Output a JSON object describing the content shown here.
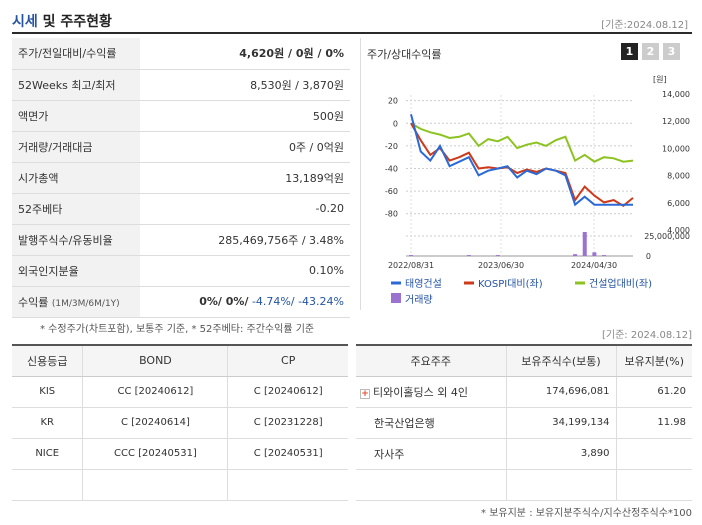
{
  "header": {
    "title_prefix": "시세",
    "title_rest": " 및 주주현황",
    "date": "[기준:2024.08.12]"
  },
  "quote": [
    {
      "label": "주가/전일대비/수익률",
      "value": "4,620원 / 0원 / 0%"
    },
    {
      "label": "52Weeks 최고/최저",
      "value": "8,530원 / 3,870원"
    },
    {
      "label": "액면가",
      "value": "500원"
    },
    {
      "label": "거래량/거래대금",
      "value": "0주 / 0억원"
    },
    {
      "label": "시가총액",
      "value": "13,189억원"
    },
    {
      "label": "52주베타",
      "value": "-0.20"
    },
    {
      "label": "발행주식수/유동비율",
      "value": "285,469,756주 / 3.48%"
    },
    {
      "label": "외국인지분율",
      "value": "0.10%"
    }
  ],
  "returns": {
    "label": "수익률",
    "sub": "(1M/3M/6M/1Y)",
    "v1": "0%/ 0%/",
    "v2": " -4.74%/ -43.24%"
  },
  "chart": {
    "title": "주가/상대수익률",
    "tabs": [
      "1",
      "2",
      "3"
    ],
    "unit_right": "[원]"
  },
  "chart_data": {
    "type": "line",
    "x_ticks": [
      "2022/08/31",
      "2023/06/30",
      "2024/04/30"
    ],
    "left_axis": {
      "ticks": [
        "20",
        "0",
        "-20",
        "-40",
        "-60",
        "-80"
      ],
      "ylim": [
        -90,
        25
      ]
    },
    "right_axis": {
      "ticks": [
        "14,000",
        "12,000",
        "10,000",
        "8,000",
        "6,000",
        "4,000"
      ],
      "ylim": [
        3000,
        14500
      ]
    },
    "volume_axis": {
      "ticks": [
        "25,000,000",
        "0"
      ]
    },
    "series": [
      {
        "name": "태영건설",
        "color": "#2b6ad6",
        "values": [
          8,
          -25,
          -33,
          -20,
          -38,
          -34,
          -30,
          -46,
          -42,
          -40,
          -38,
          -48,
          -42,
          -45,
          -40,
          -42,
          -46,
          -72,
          -65,
          -72,
          -72,
          -72,
          -72,
          -72
        ]
      },
      {
        "name": "KOSPI대비(좌)",
        "color": "#cc3a1a",
        "values": [
          0,
          -15,
          -28,
          -22,
          -33,
          -30,
          -26,
          -40,
          -39,
          -40,
          -39,
          -44,
          -41,
          -43,
          -40,
          -42,
          -44,
          -68,
          -56,
          -64,
          -70,
          -68,
          -73,
          -66
        ]
      },
      {
        "name": "건설업대비(좌)",
        "color": "#8cc320",
        "values": [
          0,
          -5,
          -8,
          -10,
          -13,
          -12,
          -9,
          -20,
          -14,
          -16,
          -12,
          -22,
          -19,
          -17,
          -20,
          -15,
          -12,
          -33,
          -28,
          -34,
          -30,
          -31,
          -34,
          -33
        ]
      },
      {
        "name": "거래량",
        "color": "#9b72cf",
        "values": [
          1,
          0,
          0,
          0,
          0,
          0,
          1,
          0,
          0,
          1,
          0,
          0,
          0,
          0,
          0,
          0,
          0,
          2,
          26,
          4,
          1,
          0,
          0,
          0
        ]
      }
    ]
  },
  "notes": {
    "note1": "* 수정주가(차트포함), 보통주 기준, * 52주베타: 주간수익률 기준",
    "date2": "[기준: 2024.08.12]",
    "note2": "* 보유지분 : 보유지분주식수/지수산정주식수*100"
  },
  "credit": {
    "headers": [
      "신용등급",
      "BOND",
      "CP"
    ],
    "rows": [
      [
        "KIS",
        "CC [20240612]",
        "C [20240612]"
      ],
      [
        "KR",
        "C [20240614]",
        "C [20231228]"
      ],
      [
        "NICE",
        "CCC [20240531]",
        "C [20240531]"
      ],
      [
        "",
        "",
        ""
      ]
    ]
  },
  "holders": {
    "headers": [
      "주요주주",
      "보유주식수(보통)",
      "보유지분(%)"
    ],
    "rows": [
      [
        "티와이홀딩스 외 4인",
        "174,696,081",
        "61.20"
      ],
      [
        "한국산업은행",
        "34,199,134",
        "11.98"
      ],
      [
        "자사주",
        "3,890",
        ""
      ],
      [
        "",
        "",
        ""
      ]
    ]
  }
}
